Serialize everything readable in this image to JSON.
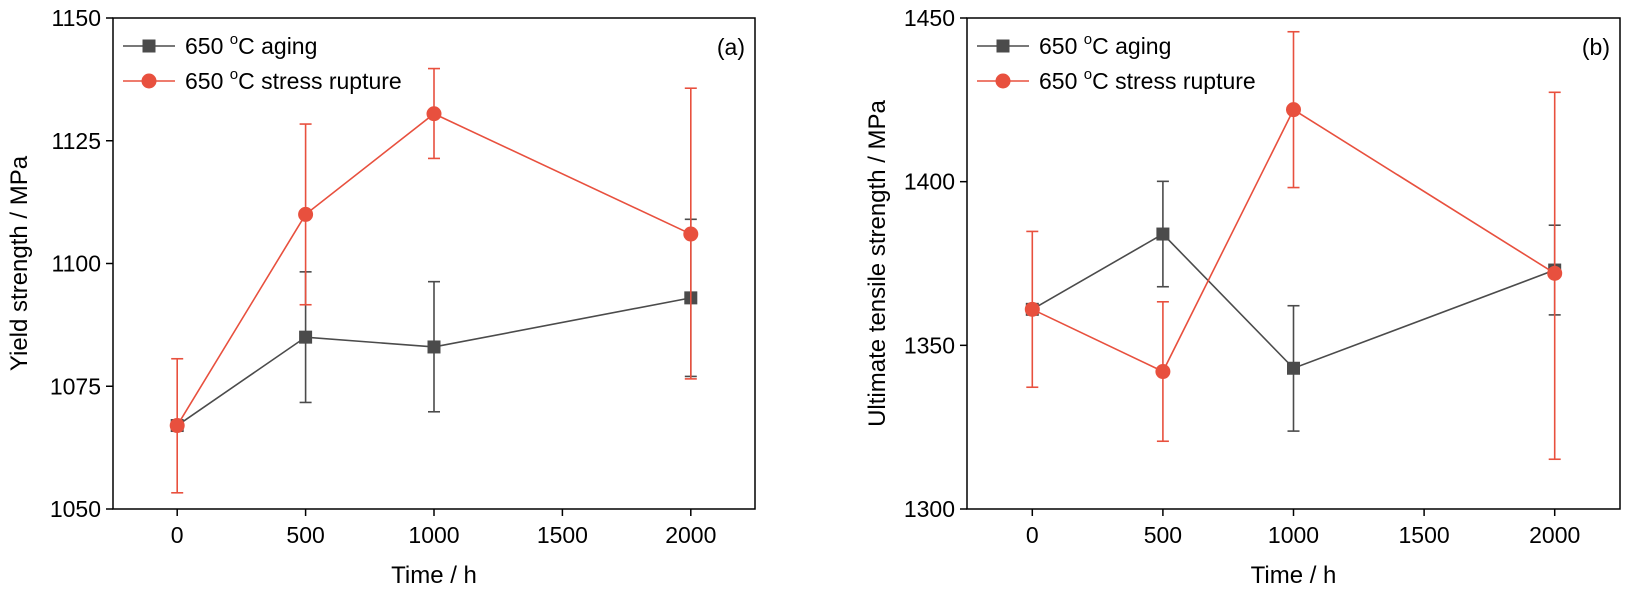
{
  "chart_data": [
    {
      "type": "line",
      "panel_label": "(a)",
      "xlabel": "Time / h",
      "ylabel": "Yield strength / MPa",
      "xlim": [
        -250,
        2250
      ],
      "ylim": [
        1050,
        1150
      ],
      "xticks": [
        0,
        500,
        1000,
        1500,
        2000
      ],
      "yticks": [
        1050,
        1075,
        1100,
        1125,
        1150
      ],
      "legend_position": "top-left",
      "series": [
        {
          "name": "650 °C aging",
          "legend_main": "650 ",
          "legend_sup": "o",
          "legend_rest": "C aging",
          "color": "#4b4b4b",
          "marker": "square",
          "x": [
            0,
            500,
            1000,
            2000
          ],
          "y": [
            1067,
            1085,
            1083,
            1093
          ],
          "err_low": [
            1067,
            1071.7,
            1069.8,
            1077.0
          ],
          "err_high": [
            1067,
            1098.3,
            1096.3,
            1109.0
          ]
        },
        {
          "name": "650 °C stress rupture",
          "legend_main": "650 ",
          "legend_sup": "o",
          "legend_rest": "C stress rupture",
          "color": "#e8503e",
          "marker": "circle",
          "x": [
            0,
            500,
            1000,
            2000
          ],
          "y": [
            1067,
            1110,
            1130.5,
            1106
          ],
          "err_low": [
            1053.3,
            1091.6,
            1121.4,
            1076.5
          ],
          "err_high": [
            1080.6,
            1128.4,
            1139.7,
            1135.7
          ]
        }
      ]
    },
    {
      "type": "line",
      "panel_label": "(b)",
      "xlabel": "Time / h",
      "ylabel": "Ultimate tensile strength / MPa",
      "xlim": [
        -250,
        2250
      ],
      "ylim": [
        1300,
        1450
      ],
      "xticks": [
        0,
        500,
        1000,
        1500,
        2000
      ],
      "yticks": [
        1300,
        1350,
        1400,
        1450
      ],
      "legend_position": "top-left",
      "series": [
        {
          "name": "650 °C aging",
          "legend_main": "650 ",
          "legend_sup": "o",
          "legend_rest": "C aging",
          "color": "#4b4b4b",
          "marker": "square",
          "x": [
            0,
            500,
            1000,
            2000
          ],
          "y": [
            1361,
            1384,
            1343,
            1373
          ],
          "err_low": [
            1361,
            1367.9,
            1323.8,
            1359.3
          ],
          "err_high": [
            1361,
            1400.1,
            1362.1,
            1386.7
          ]
        },
        {
          "name": "650 °C stress rupture",
          "legend_main": "650 ",
          "legend_sup": "o",
          "legend_rest": "C stress rupture",
          "color": "#e8503e",
          "marker": "circle",
          "x": [
            0,
            500,
            1000,
            2000
          ],
          "y": [
            1361,
            1342,
            1422,
            1372
          ],
          "err_low": [
            1337.2,
            1320.7,
            1398.2,
            1315.2
          ],
          "err_high": [
            1384.8,
            1363.3,
            1445.8,
            1427.3
          ]
        }
      ]
    }
  ]
}
